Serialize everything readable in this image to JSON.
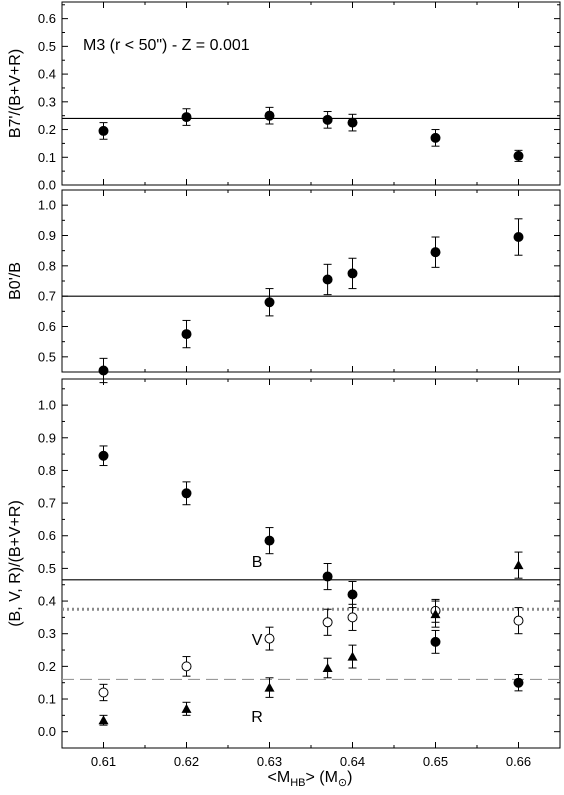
{
  "chart_data": [
    {
      "type": "scatter",
      "ylabel": "B7'/(B+V+R)",
      "annotation": "M3 (r < 50\") - Z = 0.001",
      "xlim": [
        0.605,
        0.665
      ],
      "ylim": [
        0.0,
        0.66
      ],
      "yticks": [
        "0.0",
        "0.1",
        "0.2",
        "0.3",
        "0.4",
        "0.5",
        "0.6"
      ],
      "reference_lines": [
        {
          "y": 0.24,
          "style": "solid"
        }
      ],
      "series": [
        {
          "marker": "filled-circle",
          "x": [
            0.61,
            0.62,
            0.63,
            0.637,
            0.64,
            0.65,
            0.66
          ],
          "y": [
            0.195,
            0.245,
            0.25,
            0.235,
            0.225,
            0.17,
            0.105
          ],
          "err": [
            0.03,
            0.03,
            0.03,
            0.03,
            0.03,
            0.03,
            0.02
          ]
        }
      ]
    },
    {
      "type": "scatter",
      "ylabel": "B0'/B",
      "xlim": [
        0.605,
        0.665
      ],
      "ylim": [
        0.45,
        1.05
      ],
      "yticks": [
        "0.5",
        "0.6",
        "0.7",
        "0.8",
        "0.9",
        "1.0"
      ],
      "reference_lines": [
        {
          "y": 0.7,
          "style": "solid"
        }
      ],
      "series": [
        {
          "marker": "filled-circle",
          "x": [
            0.61,
            0.62,
            0.63,
            0.637,
            0.64,
            0.65,
            0.66
          ],
          "y": [
            0.455,
            0.575,
            0.68,
            0.755,
            0.775,
            0.845,
            0.895
          ],
          "err": [
            0.04,
            0.045,
            0.045,
            0.05,
            0.05,
            0.05,
            0.06
          ]
        }
      ]
    },
    {
      "type": "scatter",
      "ylabel": "(B, V, R)/(B+V+R)",
      "xlabel": "<M_HB> (M_sun)",
      "xlim": [
        0.605,
        0.665
      ],
      "ylim": [
        -0.05,
        1.08
      ],
      "yticks": [
        "0.0",
        "0.1",
        "0.2",
        "0.3",
        "0.4",
        "0.5",
        "0.6",
        "0.7",
        "0.8",
        "0.9",
        "1.0"
      ],
      "xticks": [
        "0.61",
        "0.62",
        "0.63",
        "0.64",
        "0.65",
        "0.66"
      ],
      "reference_lines": [
        {
          "y": 0.465,
          "style": "solid"
        },
        {
          "y": 0.375,
          "style": "dotted"
        },
        {
          "y": 0.16,
          "style": "dashed"
        }
      ],
      "labels": [
        {
          "text": "B",
          "x": 0.6285,
          "y": 0.505
        },
        {
          "text": "V",
          "x": 0.6285,
          "y": 0.265
        },
        {
          "text": "R",
          "x": 0.6285,
          "y": 0.03
        }
      ],
      "series": [
        {
          "name": "B",
          "marker": "filled-circle",
          "x": [
            0.61,
            0.62,
            0.63,
            0.637,
            0.64,
            0.65,
            0.66
          ],
          "y": [
            0.845,
            0.73,
            0.585,
            0.475,
            0.42,
            0.275,
            0.15
          ],
          "err": [
            0.03,
            0.035,
            0.04,
            0.04,
            0.04,
            0.035,
            0.025
          ]
        },
        {
          "name": "V",
          "marker": "open-circle",
          "x": [
            0.61,
            0.62,
            0.63,
            0.637,
            0.64,
            0.65,
            0.66
          ],
          "y": [
            0.12,
            0.2,
            0.285,
            0.335,
            0.35,
            0.37,
            0.34
          ],
          "err": [
            0.025,
            0.03,
            0.035,
            0.04,
            0.04,
            0.035,
            0.04
          ]
        },
        {
          "name": "R",
          "marker": "filled-triangle",
          "x": [
            0.61,
            0.62,
            0.63,
            0.637,
            0.64,
            0.65,
            0.66
          ],
          "y": [
            0.035,
            0.07,
            0.135,
            0.195,
            0.23,
            0.36,
            0.51
          ],
          "err": [
            0.015,
            0.02,
            0.03,
            0.03,
            0.035,
            0.04,
            0.04
          ]
        }
      ]
    }
  ],
  "xlabel_parts": {
    "lt": "<M",
    "sub": "HB",
    "mid": "> (M",
    "sun": "⊙",
    "end": ")"
  }
}
